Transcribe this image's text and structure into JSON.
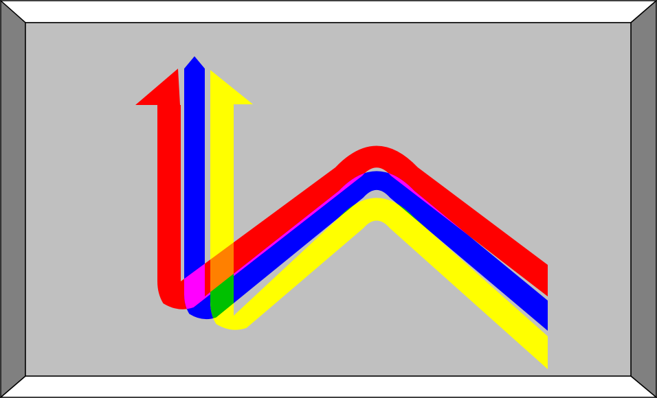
{
  "frame": {
    "colors": {
      "top_bevel": "#ffffff",
      "bottom_bevel": "#ffffff",
      "left_bevel": "#808080",
      "right_bevel": "#808080",
      "panel": "#c0c0c0",
      "outline": "#000000"
    }
  },
  "arrows": [
    {
      "name": "red-arrow",
      "color": "#ff0000",
      "direction": "up"
    },
    {
      "name": "blue-arrow",
      "color": "#0000ff",
      "direction": "up"
    },
    {
      "name": "yellow-arrow",
      "color": "#ffff00",
      "direction": "up"
    }
  ],
  "overlaps": [
    {
      "name": "magenta-overlap",
      "color": "#ff00ff",
      "between": [
        "red-arrow",
        "blue-arrow"
      ]
    },
    {
      "name": "orange-overlap",
      "color": "#ff8000",
      "between": [
        "red-arrow",
        "yellow-arrow"
      ]
    },
    {
      "name": "green-overlap",
      "color": "#00c000",
      "between": [
        "blue-arrow",
        "yellow-arrow"
      ]
    }
  ]
}
